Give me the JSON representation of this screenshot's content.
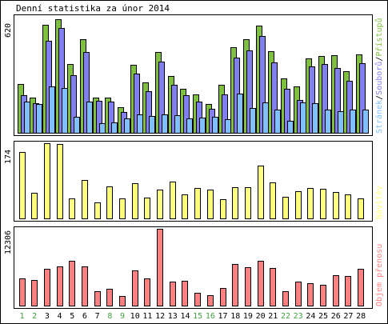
{
  "chart_data": {
    "type": "bar",
    "title": "Denní statistika za únor 2014",
    "categories": [
      "1",
      "2",
      "3",
      "4",
      "5",
      "6",
      "7",
      "8",
      "9",
      "10",
      "11",
      "12",
      "13",
      "14",
      "15",
      "16",
      "17",
      "18",
      "19",
      "20",
      "21",
      "22",
      "23",
      "24",
      "25",
      "26",
      "27",
      "28"
    ],
    "weekend_days": [
      "1",
      "2",
      "8",
      "9",
      "15",
      "16",
      "22",
      "23"
    ],
    "panels": [
      {
        "id": "traffic",
        "ymax_label": "620",
        "ylim": [
          0,
          620
        ],
        "legend": [
          "Stránek",
          "Souborů",
          "Přístupů"
        ],
        "series": [
          {
            "name": "Přístupů",
            "color": "#80c040",
            "values": [
              262,
              192,
              577,
              607,
              368,
              502,
              191,
              191,
              140,
              365,
              270,
              435,
              304,
              239,
              210,
              159,
              260,
              458,
              500,
              574,
              438,
              295,
              249,
              400,
              410,
              418,
              333,
              419
            ]
          },
          {
            "name": "Souborů",
            "color": "#8080f0",
            "values": [
              202,
              163,
              494,
              560,
              312,
              433,
              172,
              170,
              115,
              320,
              225,
              384,
              258,
              205,
              170,
              132,
              210,
              404,
              440,
              516,
              380,
              239,
              180,
              358,
              370,
              350,
              280,
              372
            ]
          },
          {
            "name": "Stránek",
            "color": "#80c0ff",
            "values": [
              170,
              157,
              252,
              242,
              88,
              168,
              56,
              58,
              80,
              102,
              93,
              102,
              99,
              82,
              85,
              91,
              76,
              213,
              135,
              166,
              128,
              67,
              165,
              160,
              127,
              120,
              129,
              126
            ]
          }
        ]
      },
      {
        "id": "visits",
        "ymax_label": "174",
        "ylim": [
          0,
          174
        ],
        "legend": [
          "Návštěv"
        ],
        "series": [
          {
            "name": "Návštěv",
            "color": "#ffff80",
            "values": [
              153,
              61,
              174,
              172,
              47,
              89,
              39,
              75,
              48,
              82,
              49,
              67,
              86,
              57,
              71,
              67,
              46,
              74,
              74,
              123,
              84,
              52,
              65,
              72,
              70,
              63,
              56,
              47
            ]
          }
        ]
      },
      {
        "id": "volume",
        "ymax_label": "12306",
        "ylim": [
          0,
          12306
        ],
        "legend": [
          "Objem přenosu"
        ],
        "series": [
          {
            "name": "Objem přenosu",
            "color": "#ff8080",
            "values": [
              4450,
              4160,
              5920,
              6280,
              7210,
              6380,
              2370,
              2850,
              1630,
              5720,
              4450,
              12306,
              3900,
              4000,
              2200,
              1810,
              2900,
              6700,
              6220,
              7250,
              6050,
              2420,
              3990,
              3740,
              3380,
              4960,
              4820,
              5960
            ]
          }
        ]
      }
    ]
  }
}
